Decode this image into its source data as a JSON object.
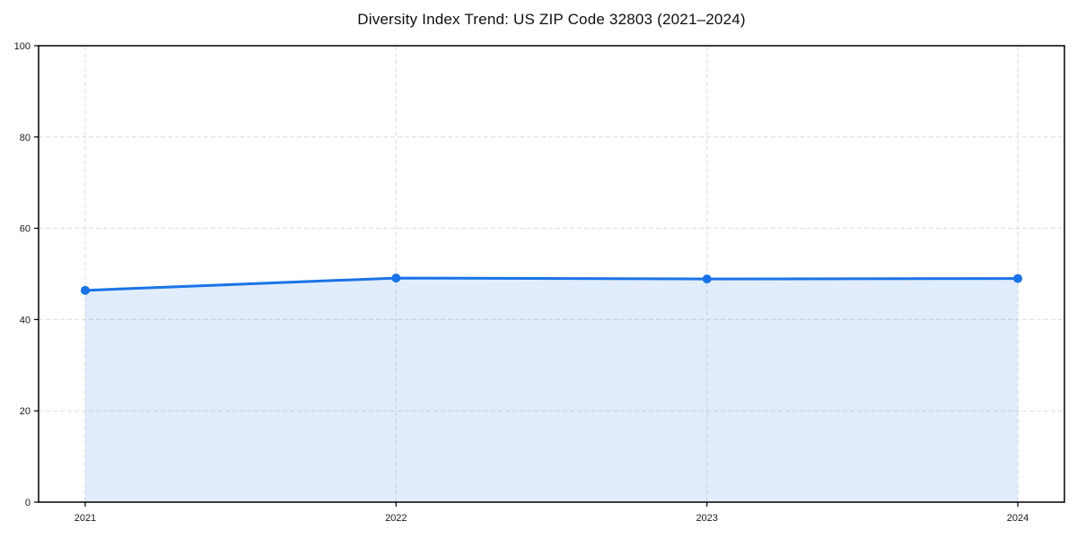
{
  "chart_data": {
    "type": "area",
    "title": "Diversity Index Trend: US ZIP Code 32803 (2021–2024)",
    "x": [
      2021,
      2022,
      2023,
      2024
    ],
    "x_tick_labels": [
      "2021",
      "2022",
      "2023",
      "2024"
    ],
    "y_ticks": [
      0,
      20,
      40,
      60,
      80,
      100
    ],
    "y_tick_labels": [
      "0",
      "20",
      "40",
      "60",
      "80",
      "100"
    ],
    "series": [
      {
        "name": "Diversity Index",
        "values": [
          46.4,
          49.1,
          48.9,
          49.0
        ]
      }
    ],
    "xlabel": "",
    "ylabel": "",
    "xlim": [
      2020.85,
      2024.15
    ],
    "ylim": [
      0,
      100
    ],
    "grid": true,
    "grid_style": "dashed",
    "legend_position": "none",
    "colors": {
      "line": "#1a73e8",
      "marker": "#1a73e8",
      "fill": "#1a73e8",
      "fill_opacity": 0.13,
      "grid": "#dcdcdc",
      "spine": "#000000",
      "text": "#1a1a1a"
    }
  }
}
